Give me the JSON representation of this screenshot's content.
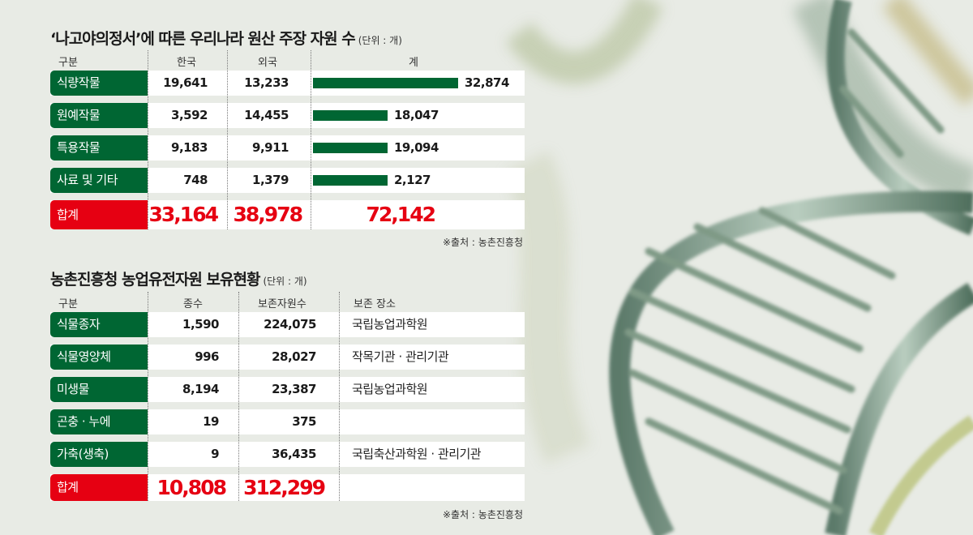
{
  "colors": {
    "row_label": "#006633",
    "total_label": "#e60012",
    "bar": "#006633",
    "total_text": "#e60012"
  },
  "table1": {
    "title": "‘나고야의정서’에 따른 우리나라 원산 주장 자원 수",
    "unit": "(단위 : 개)",
    "headers": [
      "구분",
      "한국",
      "외국",
      "계"
    ],
    "rows": [
      {
        "label": "식량작물",
        "korea": "19,641",
        "foreign": "13,233",
        "total": "32,874"
      },
      {
        "label": "원예작물",
        "korea": "3,592",
        "foreign": "14,455",
        "total": "18,047"
      },
      {
        "label": "특용작물",
        "korea": "9,183",
        "foreign": "9,911",
        "total": "19,094"
      },
      {
        "label": "사료 및 기타",
        "korea": "748",
        "foreign": "1,379",
        "total": "2,127"
      }
    ],
    "sum": {
      "label": "합계",
      "korea": "33,164",
      "foreign": "38,978",
      "total": "72,142"
    },
    "source": "※출처 : 농촌진흥청"
  },
  "table2": {
    "title": "농촌진흥청 농업유전자원 보유현황",
    "unit": "(단위 : 개)",
    "headers": [
      "구분",
      "종수",
      "보존자원수",
      "보존 장소"
    ],
    "rows": [
      {
        "label": "식물종자",
        "species": "1,590",
        "resources": "224,075",
        "place": "국립농업과학원"
      },
      {
        "label": "식물영양체",
        "species": "996",
        "resources": "28,027",
        "place": "작목기관 · 관리기관"
      },
      {
        "label": "미생물",
        "species": "8,194",
        "resources": "23,387",
        "place": "국립농업과학원"
      },
      {
        "label": "곤충 · 누에",
        "species": "19",
        "resources": "375",
        "place": ""
      },
      {
        "label": "가축(생축)",
        "species": "9",
        "resources": "36,435",
        "place": "국립축산과학원 · 관리기관"
      }
    ],
    "sum": {
      "label": "합계",
      "species": "10,808",
      "resources": "312,299",
      "place": ""
    },
    "source": "※출처 : 농촌진흥청"
  },
  "chart_data": {
    "type": "bar",
    "orientation": "horizontal",
    "title": "‘나고야의정서’에 따른 우리나라 원산 주장 자원 수",
    "categories": [
      "식량작물",
      "원예작물",
      "특용작물",
      "사료 및 기타"
    ],
    "values": [
      32874,
      18047,
      19094,
      2127
    ],
    "note": "bar lengths for 2,127 drawn equal to 18,047/19,094 in original"
  }
}
